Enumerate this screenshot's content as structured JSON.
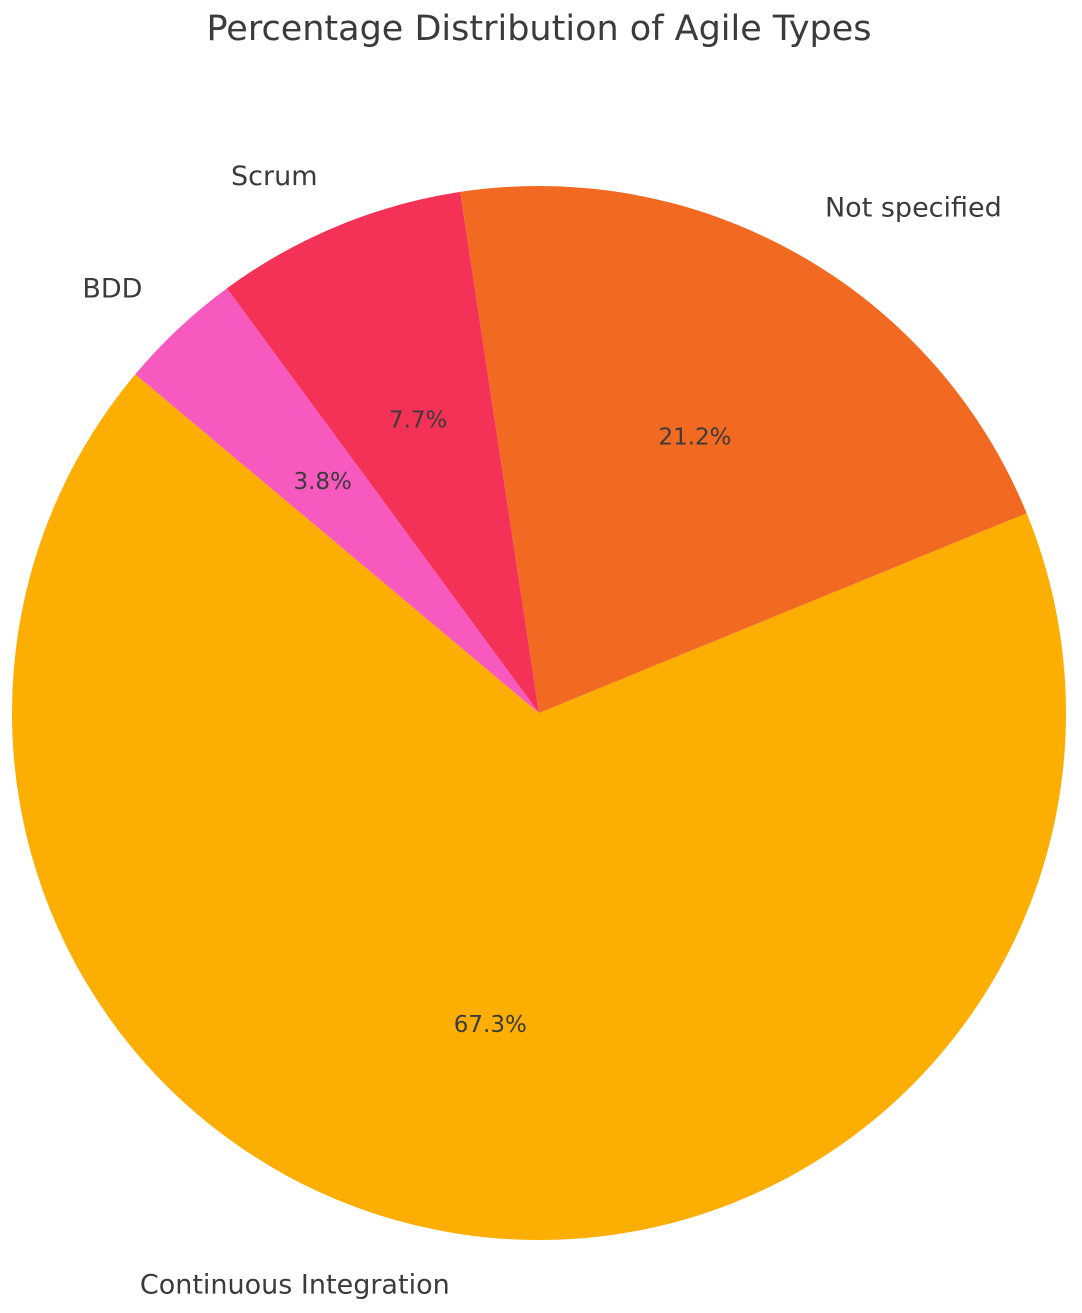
{
  "chart_data": {
    "type": "pie",
    "title": "Percentage Distribution of Agile Types",
    "categories": [
      "Continuous Integration",
      "Not specified",
      "Scrum",
      "BDD"
    ],
    "values": [
      67.3,
      21.2,
      7.7,
      3.8
    ],
    "value_labels": [
      "67.3%",
      "21.2%",
      "7.7%",
      "3.8%"
    ],
    "colors": [
      "#fcae03",
      "#f26a22",
      "#f43257",
      "#f759bf"
    ],
    "start_angle": 140,
    "counterclockwise": true
  }
}
